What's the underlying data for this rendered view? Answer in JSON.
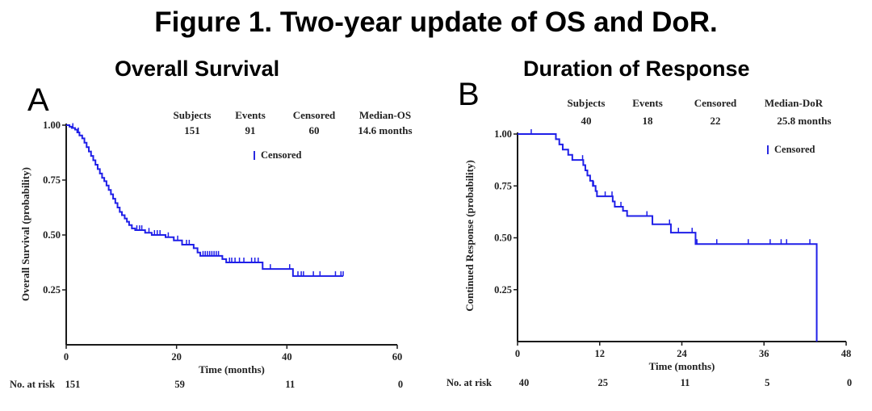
{
  "figure_title": "Figure 1. Two-year update of OS and DoR.",
  "colors": {
    "curve": "#1f1fe8",
    "axis": "#1a1a1a"
  },
  "chart_data": [
    {
      "type": "line",
      "subtype": "kaplan-meier",
      "panel": "A",
      "title": "Overall Survival",
      "xlabel": "Time (months)",
      "ylabel": "Overall Survival (probability)",
      "xlim": [
        0,
        60
      ],
      "ylim": [
        0,
        1.0
      ],
      "xticks": [
        0,
        20,
        40,
        60
      ],
      "xtick_labels": [
        "0",
        "20",
        "40",
        "60"
      ],
      "yticks": [
        0.25,
        0.5,
        0.75,
        1.0
      ],
      "ytick_labels": [
        "0.25",
        "0.50",
        "0.75",
        "1.00"
      ],
      "grid": false,
      "legend": {
        "label": "Censored",
        "position": "top-center"
      },
      "stats": {
        "headers": [
          "Subjects",
          "Events",
          "Censored",
          "Median-OS"
        ],
        "values": [
          "151",
          "91",
          "60",
          "14.6 months"
        ]
      },
      "at_risk": {
        "label": "No. at risk",
        "times": [
          0,
          20,
          40,
          60
        ],
        "values": [
          "151",
          "59",
          "11",
          "0"
        ]
      },
      "series": [
        {
          "name": "Overall Survival",
          "steps": [
            [
              0,
              1.0
            ],
            [
              0.6,
              0.993
            ],
            [
              1.0,
              0.987
            ],
            [
              1.6,
              0.98
            ],
            [
              2.0,
              0.967
            ],
            [
              2.4,
              0.953
            ],
            [
              2.9,
              0.94
            ],
            [
              3.3,
              0.92
            ],
            [
              3.7,
              0.9
            ],
            [
              4.1,
              0.88
            ],
            [
              4.5,
              0.86
            ],
            [
              4.9,
              0.84
            ],
            [
              5.3,
              0.82
            ],
            [
              5.7,
              0.8
            ],
            [
              6.1,
              0.78
            ],
            [
              6.5,
              0.76
            ],
            [
              6.9,
              0.745
            ],
            [
              7.3,
              0.725
            ],
            [
              7.7,
              0.705
            ],
            [
              8.1,
              0.685
            ],
            [
              8.5,
              0.665
            ],
            [
              8.9,
              0.645
            ],
            [
              9.3,
              0.625
            ],
            [
              9.7,
              0.605
            ],
            [
              10.1,
              0.59
            ],
            [
              10.6,
              0.575
            ],
            [
              11.0,
              0.56
            ],
            [
              11.4,
              0.545
            ],
            [
              11.9,
              0.53
            ],
            [
              12.5,
              0.522
            ],
            [
              14.3,
              0.51
            ],
            [
              15.5,
              0.5
            ],
            [
              18.0,
              0.49
            ],
            [
              19.5,
              0.475
            ],
            [
              21.0,
              0.456
            ],
            [
              23.1,
              0.44
            ],
            [
              23.8,
              0.42
            ],
            [
              24.3,
              0.405
            ],
            [
              28.3,
              0.39
            ],
            [
              29.0,
              0.375
            ],
            [
              35.6,
              0.345
            ],
            [
              41.1,
              0.313
            ],
            [
              50.2,
              0.313
            ]
          ],
          "censored": [
            [
              1.2,
              0.987
            ],
            [
              2.2,
              0.967
            ],
            [
              12.8,
              0.522
            ],
            [
              13.3,
              0.522
            ],
            [
              13.7,
              0.522
            ],
            [
              15.0,
              0.51
            ],
            [
              16.0,
              0.5
            ],
            [
              16.5,
              0.5
            ],
            [
              17.0,
              0.5
            ],
            [
              18.5,
              0.49
            ],
            [
              20.2,
              0.475
            ],
            [
              21.8,
              0.456
            ],
            [
              22.3,
              0.456
            ],
            [
              24.8,
              0.405
            ],
            [
              25.2,
              0.405
            ],
            [
              25.6,
              0.405
            ],
            [
              26.0,
              0.405
            ],
            [
              26.4,
              0.405
            ],
            [
              26.8,
              0.405
            ],
            [
              27.2,
              0.405
            ],
            [
              27.6,
              0.405
            ],
            [
              29.6,
              0.375
            ],
            [
              30.0,
              0.375
            ],
            [
              30.6,
              0.375
            ],
            [
              31.4,
              0.375
            ],
            [
              32.2,
              0.375
            ],
            [
              33.6,
              0.375
            ],
            [
              34.2,
              0.375
            ],
            [
              34.8,
              0.375
            ],
            [
              37.0,
              0.345
            ],
            [
              40.5,
              0.345
            ],
            [
              42.0,
              0.313
            ],
            [
              42.6,
              0.313
            ],
            [
              43.0,
              0.313
            ],
            [
              44.8,
              0.313
            ],
            [
              46.0,
              0.313
            ],
            [
              48.8,
              0.313
            ],
            [
              49.8,
              0.313
            ],
            [
              50.2,
              0.313
            ]
          ]
        }
      ]
    },
    {
      "type": "line",
      "subtype": "kaplan-meier",
      "panel": "B",
      "title": "Duration of Response",
      "xlabel": "Time (months)",
      "ylabel": "Continued Response (probability)",
      "xlim": [
        0,
        48
      ],
      "ylim": [
        0,
        1.0
      ],
      "xticks": [
        0,
        12,
        24,
        36,
        48
      ],
      "xtick_labels": [
        "0",
        "12",
        "24",
        "36",
        "48"
      ],
      "yticks": [
        0.25,
        0.5,
        0.75,
        1.0
      ],
      "ytick_labels": [
        "0.25",
        "0.50",
        "0.75",
        "1.00"
      ],
      "grid": false,
      "legend": {
        "label": "Censored",
        "position": "top-right"
      },
      "stats": {
        "headers": [
          "Subjects",
          "Events",
          "Censored",
          "Median-DoR"
        ],
        "values": [
          "40",
          "18",
          "22",
          "25.8 months"
        ]
      },
      "at_risk": {
        "label": "No. at risk",
        "times": [
          0,
          12,
          24,
          36,
          48
        ],
        "values": [
          "40",
          "25",
          "11",
          "5",
          "0"
        ]
      },
      "series": [
        {
          "name": "Duration of Response",
          "steps": [
            [
              0,
              1.0
            ],
            [
              5.6,
              0.975
            ],
            [
              6.1,
              0.95
            ],
            [
              6.6,
              0.925
            ],
            [
              7.4,
              0.9
            ],
            [
              8.0,
              0.875
            ],
            [
              9.6,
              0.85
            ],
            [
              9.9,
              0.825
            ],
            [
              10.2,
              0.8
            ],
            [
              10.6,
              0.775
            ],
            [
              11.0,
              0.75
            ],
            [
              11.4,
              0.725
            ],
            [
              11.6,
              0.7
            ],
            [
              13.9,
              0.675
            ],
            [
              14.2,
              0.65
            ],
            [
              15.4,
              0.63
            ],
            [
              16.0,
              0.605
            ],
            [
              19.7,
              0.565
            ],
            [
              22.4,
              0.525
            ],
            [
              26.0,
              0.47
            ],
            [
              43.7,
              0.0
            ]
          ],
          "censored": [
            [
              2.0,
              1.0
            ],
            [
              9.5,
              0.875
            ],
            [
              11.1,
              0.75
            ],
            [
              12.8,
              0.7
            ],
            [
              13.8,
              0.7
            ],
            [
              15.1,
              0.65
            ],
            [
              18.9,
              0.605
            ],
            [
              22.2,
              0.565
            ],
            [
              23.5,
              0.525
            ],
            [
              25.5,
              0.525
            ],
            [
              26.2,
              0.47
            ],
            [
              29.1,
              0.47
            ],
            [
              33.7,
              0.47
            ],
            [
              36.9,
              0.47
            ],
            [
              38.5,
              0.47
            ],
            [
              39.3,
              0.47
            ],
            [
              42.7,
              0.47
            ]
          ]
        }
      ]
    }
  ]
}
